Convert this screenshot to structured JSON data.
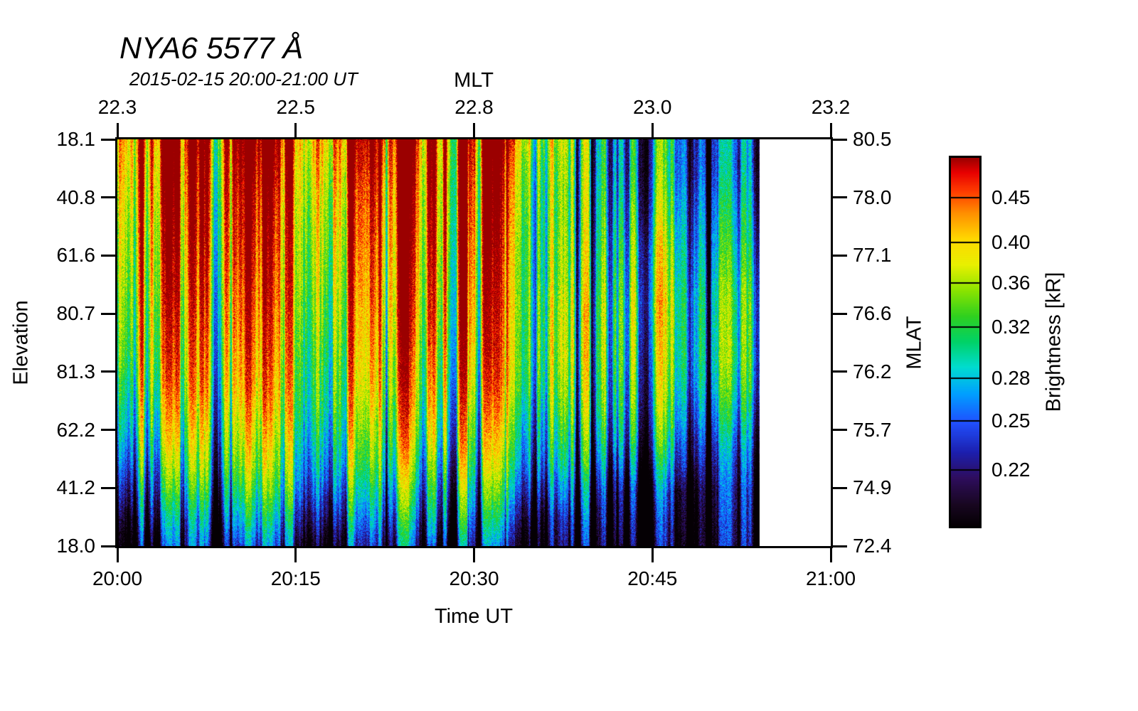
{
  "title": "NYA6 5577 Å",
  "subtitle": "2015-02-15 20:00-21:00 UT",
  "chart_data": {
    "type": "heatmap",
    "title": "NYA6 5577 Å",
    "subtitle": "2015-02-15 20:00-21:00 UT",
    "x_bottom": {
      "label": "Time UT",
      "ticks": [
        "20:00",
        "20:15",
        "20:30",
        "20:45",
        "21:00"
      ],
      "data_extent": "data shown 20:00-20:54, white gap 20:54-21:00"
    },
    "x_top": {
      "label": "MLT",
      "ticks": [
        "22.3",
        "22.5",
        "22.8",
        "23.0",
        "23.2"
      ]
    },
    "y_left": {
      "label": "Elevation",
      "ticks": [
        "18.1",
        "40.8",
        "61.6",
        "80.7",
        "81.3",
        "62.2",
        "41.2",
        "18.0"
      ]
    },
    "y_right": {
      "label": "MLAT",
      "ticks": [
        "80.5",
        "78.0",
        "77.1",
        "76.6",
        "76.2",
        "75.7",
        "74.9",
        "72.4"
      ]
    },
    "colorbar": {
      "label": "Brightness [kR]",
      "ticks": [
        "0.45",
        "0.40",
        "0.36",
        "0.32",
        "0.28",
        "0.25",
        "0.22"
      ],
      "scale": "log",
      "domain": [
        0.19,
        0.5
      ],
      "colormap": [
        [
          0.0,
          "#050004"
        ],
        [
          0.06,
          "#190722"
        ],
        [
          0.13,
          "#2e0d5e"
        ],
        [
          0.2,
          "#1c1fae"
        ],
        [
          0.28,
          "#2050ff"
        ],
        [
          0.36,
          "#00a0ff"
        ],
        [
          0.43,
          "#00dcd0"
        ],
        [
          0.5,
          "#00d268"
        ],
        [
          0.57,
          "#2fd01f"
        ],
        [
          0.64,
          "#8ce400"
        ],
        [
          0.71,
          "#e8f000"
        ],
        [
          0.78,
          "#ffd800"
        ],
        [
          0.85,
          "#ff9000"
        ],
        [
          0.91,
          "#ff3c00"
        ],
        [
          0.96,
          "#e80000"
        ],
        [
          1.0,
          "#9b0000"
        ]
      ]
    },
    "grid": {
      "units": "kR",
      "rows_note": "rows top to bottom follow the elevation scan 18.1 deg ... 18.0 deg",
      "time_minutes": [
        0,
        3,
        6,
        9,
        12,
        15,
        18,
        21,
        24,
        27,
        30,
        33,
        36,
        39,
        42,
        45,
        48,
        51
      ],
      "data_end_minute": 54,
      "values": [
        [
          0.46,
          0.48,
          0.45,
          0.46,
          0.48,
          0.43,
          0.46,
          0.48,
          0.5,
          0.5,
          0.48,
          0.44,
          0.36,
          0.3,
          0.26,
          0.29,
          0.25,
          0.23
        ],
        [
          0.45,
          0.46,
          0.43,
          0.44,
          0.46,
          0.41,
          0.44,
          0.46,
          0.48,
          0.49,
          0.46,
          0.41,
          0.34,
          0.3,
          0.26,
          0.29,
          0.25,
          0.23
        ],
        [
          0.43,
          0.45,
          0.42,
          0.43,
          0.44,
          0.4,
          0.42,
          0.44,
          0.47,
          0.48,
          0.45,
          0.4,
          0.33,
          0.3,
          0.27,
          0.3,
          0.26,
          0.24
        ],
        [
          0.42,
          0.43,
          0.41,
          0.42,
          0.43,
          0.39,
          0.41,
          0.43,
          0.46,
          0.47,
          0.44,
          0.39,
          0.33,
          0.3,
          0.28,
          0.31,
          0.27,
          0.25
        ],
        [
          0.41,
          0.42,
          0.4,
          0.41,
          0.42,
          0.38,
          0.4,
          0.42,
          0.45,
          0.46,
          0.43,
          0.38,
          0.33,
          0.31,
          0.29,
          0.33,
          0.28,
          0.26
        ],
        [
          0.4,
          0.41,
          0.39,
          0.4,
          0.41,
          0.38,
          0.39,
          0.41,
          0.44,
          0.45,
          0.42,
          0.37,
          0.33,
          0.31,
          0.3,
          0.33,
          0.29,
          0.27
        ],
        [
          0.39,
          0.4,
          0.38,
          0.39,
          0.4,
          0.37,
          0.38,
          0.4,
          0.43,
          0.44,
          0.41,
          0.37,
          0.34,
          0.32,
          0.31,
          0.34,
          0.3,
          0.28
        ],
        [
          0.38,
          0.39,
          0.37,
          0.38,
          0.39,
          0.36,
          0.37,
          0.39,
          0.42,
          0.43,
          0.4,
          0.36,
          0.34,
          0.32,
          0.31,
          0.33,
          0.3,
          0.28
        ],
        [
          0.37,
          0.38,
          0.36,
          0.37,
          0.38,
          0.35,
          0.36,
          0.38,
          0.4,
          0.41,
          0.39,
          0.36,
          0.34,
          0.32,
          0.31,
          0.32,
          0.3,
          0.28
        ],
        [
          0.35,
          0.36,
          0.35,
          0.36,
          0.37,
          0.34,
          0.35,
          0.37,
          0.39,
          0.4,
          0.37,
          0.35,
          0.33,
          0.31,
          0.3,
          0.31,
          0.29,
          0.27
        ],
        [
          0.33,
          0.34,
          0.33,
          0.34,
          0.35,
          0.33,
          0.34,
          0.35,
          0.37,
          0.38,
          0.35,
          0.33,
          0.31,
          0.3,
          0.29,
          0.3,
          0.27,
          0.25
        ],
        [
          0.31,
          0.32,
          0.31,
          0.32,
          0.33,
          0.31,
          0.32,
          0.33,
          0.35,
          0.36,
          0.33,
          0.31,
          0.29,
          0.28,
          0.27,
          0.28,
          0.25,
          0.23
        ],
        [
          0.28,
          0.29,
          0.29,
          0.3,
          0.31,
          0.29,
          0.3,
          0.31,
          0.32,
          0.33,
          0.31,
          0.29,
          0.27,
          0.26,
          0.24,
          0.25,
          0.23,
          0.21
        ],
        [
          0.25,
          0.26,
          0.26,
          0.27,
          0.28,
          0.27,
          0.27,
          0.28,
          0.29,
          0.3,
          0.28,
          0.26,
          0.24,
          0.23,
          0.21,
          0.22,
          0.2,
          0.2
        ],
        [
          0.22,
          0.23,
          0.23,
          0.24,
          0.25,
          0.24,
          0.24,
          0.25,
          0.26,
          0.27,
          0.25,
          0.23,
          0.21,
          0.21,
          0.2,
          0.2,
          0.195,
          0.195
        ],
        [
          0.2,
          0.2,
          0.21,
          0.21,
          0.22,
          0.21,
          0.21,
          0.22,
          0.23,
          0.23,
          0.22,
          0.2,
          0.2,
          0.195,
          0.19,
          0.19,
          0.19,
          0.19
        ]
      ]
    }
  }
}
